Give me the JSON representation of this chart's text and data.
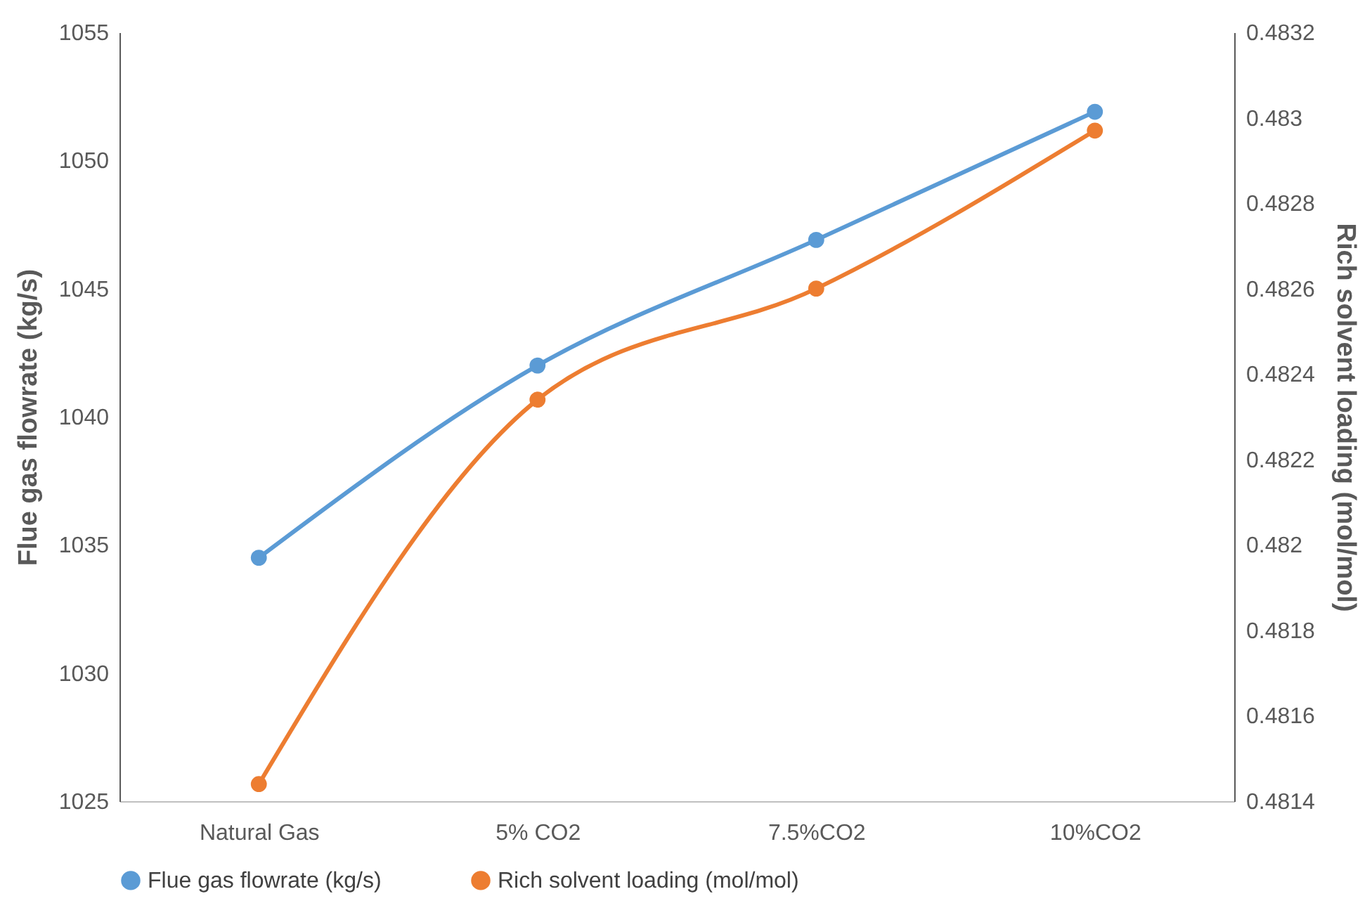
{
  "chart_data": {
    "type": "line",
    "categories": [
      "Natural Gas",
      "5% CO2",
      "7.5%CO2",
      "10%CO2"
    ],
    "ylabel": "Flue gas flowrate (kg/s)",
    "y2label": "Rich solvent loading (mol/mol)",
    "ylim": [
      1025,
      1055
    ],
    "yticks": [
      1025,
      1030,
      1035,
      1040,
      1045,
      1050,
      1055
    ],
    "y2lim": [
      0.4814,
      0.4832
    ],
    "y2ticks": [
      0.4814,
      0.4816,
      0.4818,
      0.482,
      0.4822,
      0.4824,
      0.4826,
      0.4828,
      0.483,
      0.4832
    ],
    "series": [
      {
        "name": "Flue gas flowrate (kg/s)",
        "color": "#5b9bd5",
        "values": [
          1034.5,
          1042.0,
          1046.9,
          1051.9
        ]
      },
      {
        "name": "Rich solvent loading (mol/mol)",
        "color": "#ed7d31",
        "axis": "y2",
        "values": [
          0.48144,
          0.48234,
          0.4826,
          0.48297
        ]
      }
    ],
    "marker": "circle",
    "line_style": "solid",
    "grid": false,
    "legend": "bottom"
  }
}
